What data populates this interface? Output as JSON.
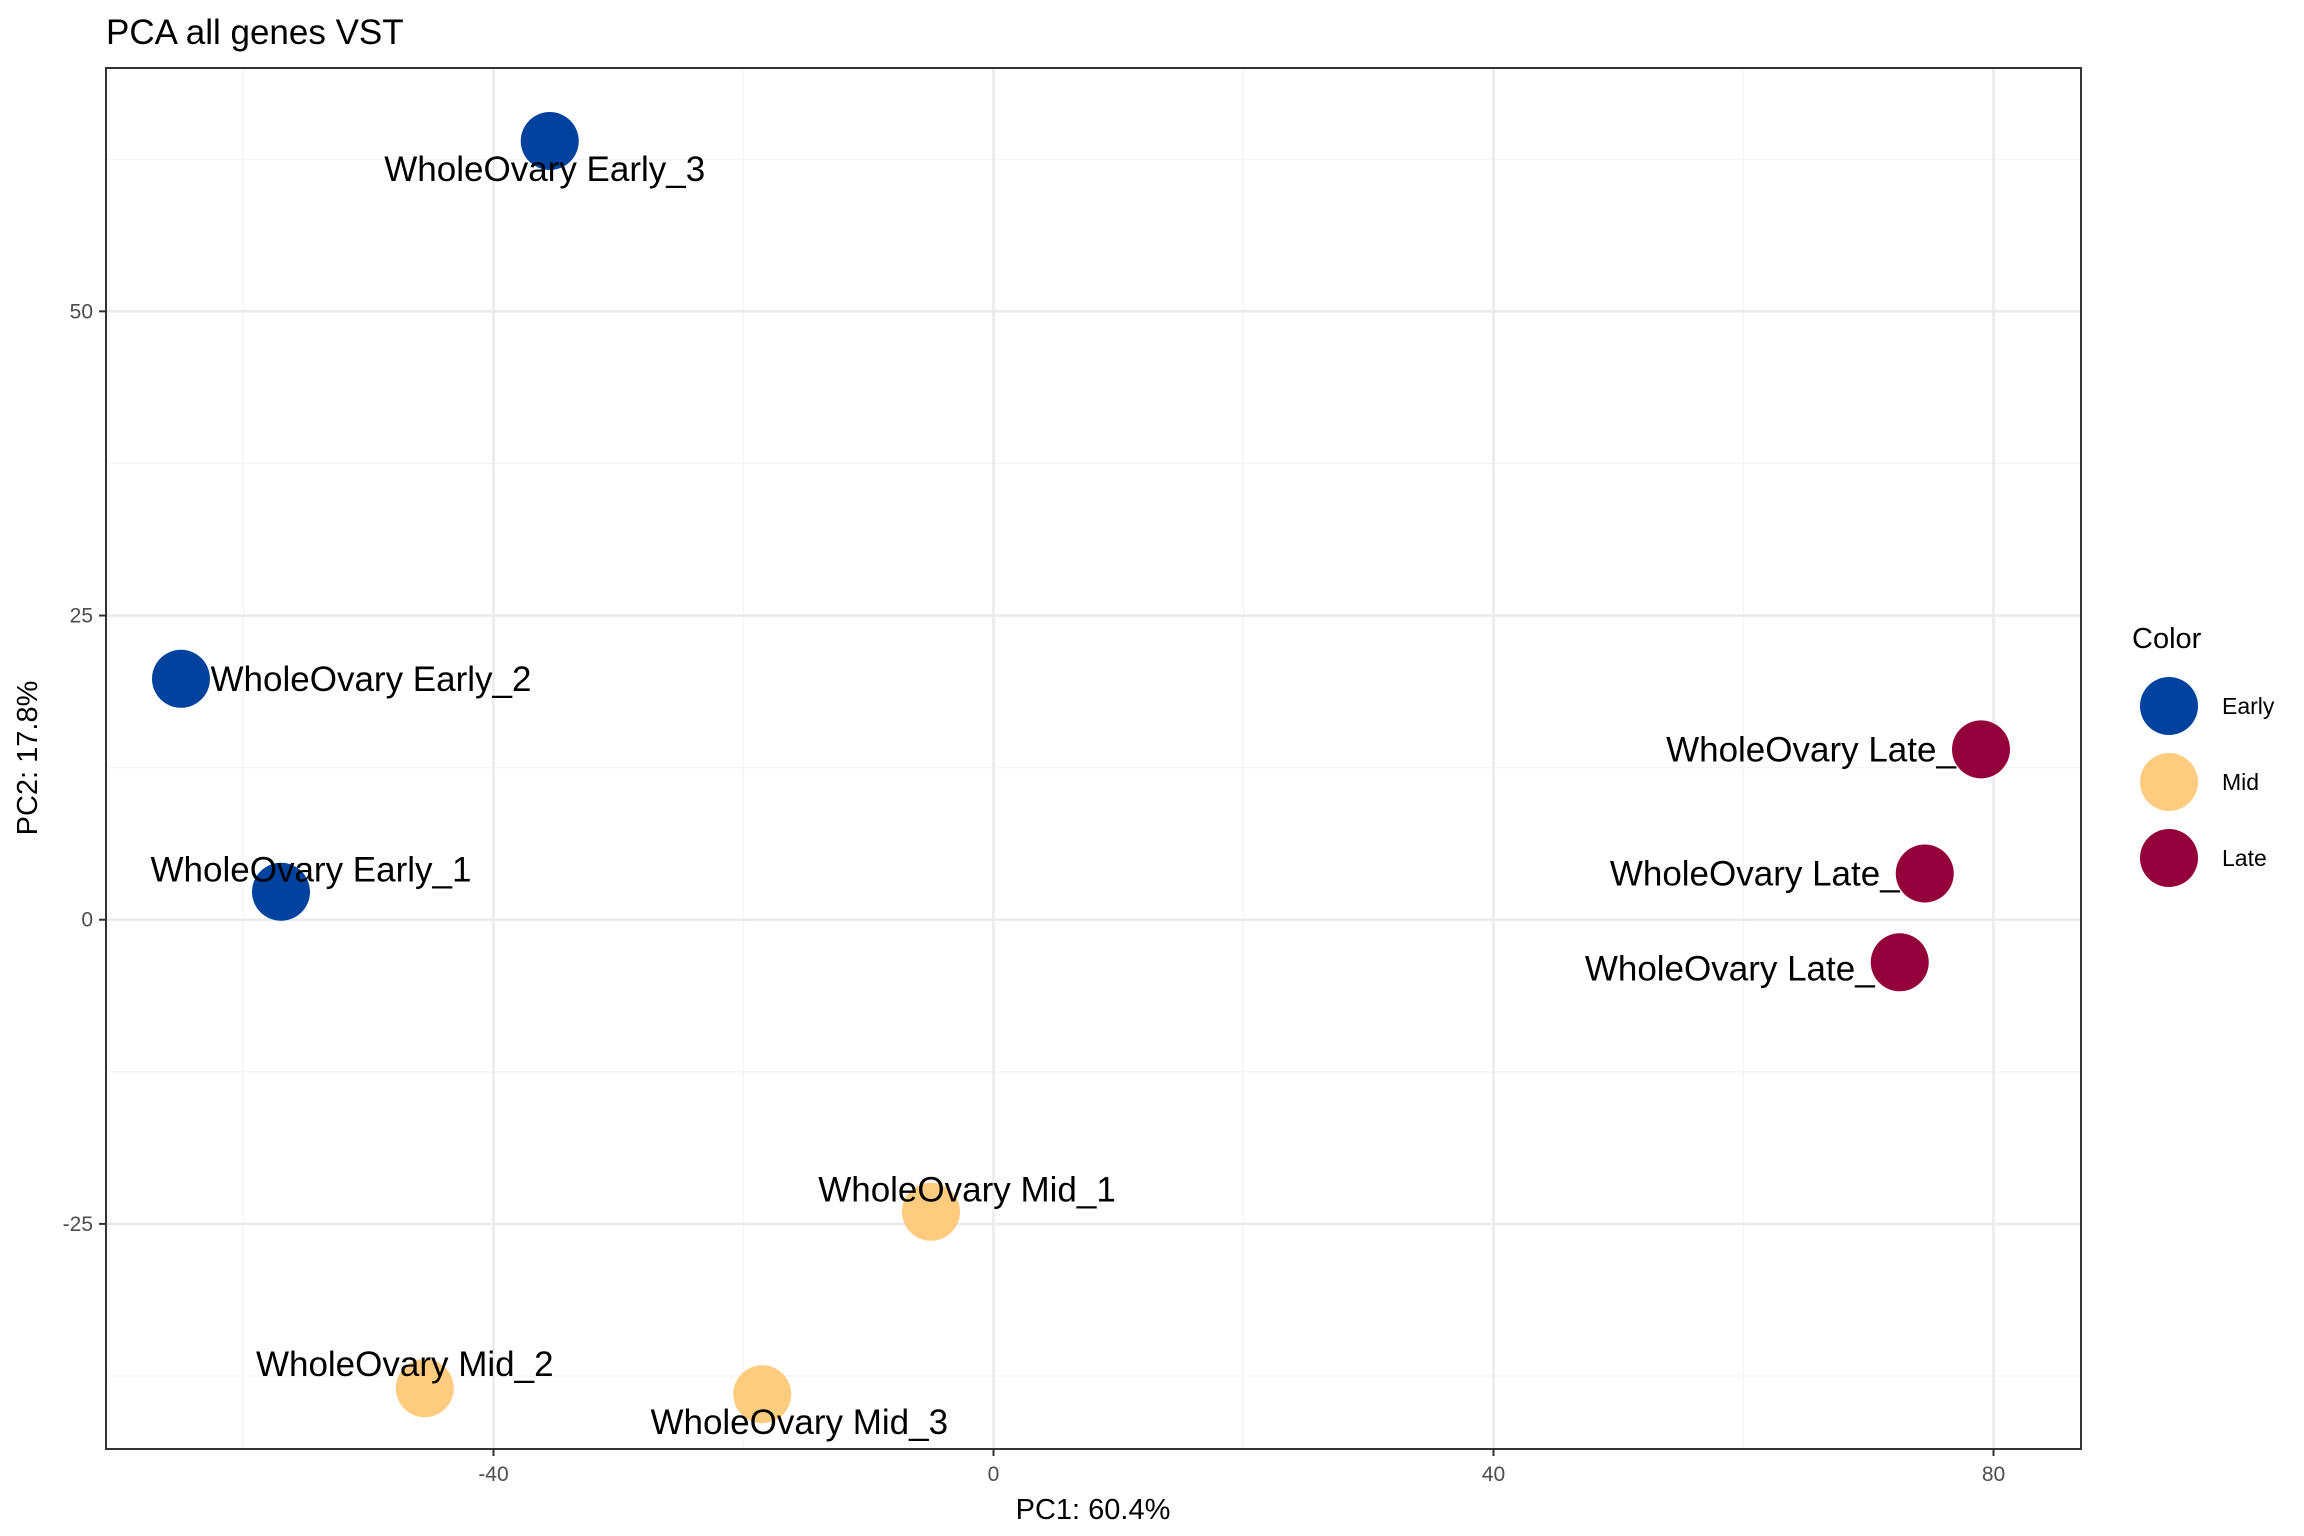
{
  "chart_data": {
    "type": "scatter",
    "title": "PCA all genes VST",
    "xlabel": "PC1: 60.4%",
    "ylabel": "PC2: 17.8%",
    "xlim": [
      -71,
      87
    ],
    "ylim": [
      -43.5,
      70
    ],
    "x_ticks": [
      -40,
      0,
      40,
      80
    ],
    "x_tick_labels": [
      "-40",
      "0",
      "40",
      "80"
    ],
    "y_ticks": [
      -25,
      0,
      25,
      50
    ],
    "y_tick_labels": [
      "-25",
      "0",
      "25",
      "50"
    ],
    "grid": true,
    "legend": {
      "title": "Color",
      "position": "right",
      "entries": [
        {
          "label": "Early",
          "color": "#00429D"
        },
        {
          "label": "Mid",
          "color": "#FFCB7F"
        },
        {
          "label": "Late",
          "color": "#93003A"
        }
      ]
    },
    "points": [
      {
        "label": "WholeOvary Early_3",
        "group": "Early",
        "x": -35.5,
        "y": 64
      },
      {
        "label": "WholeOvary Early_2",
        "group": "Early",
        "x": -65,
        "y": 19.8
      },
      {
        "label": "WholeOvary Early_1",
        "group": "Early",
        "x": -57,
        "y": 2.3
      },
      {
        "label": "WholeOvary Late_",
        "group": "Late",
        "x": 79,
        "y": 14
      },
      {
        "label": "WholeOvary Late_",
        "group": "Late",
        "x": 74.5,
        "y": 3.8
      },
      {
        "label": "WholeOvary Late_",
        "group": "Late",
        "x": 72.5,
        "y": -3.5
      },
      {
        "label": "WholeOvary Mid_1",
        "group": "Mid",
        "x": -5,
        "y": -24
      },
      {
        "label": "WholeOvary Mid_2",
        "group": "Mid",
        "x": -45.5,
        "y": -38.5
      },
      {
        "label": "WholeOvary Mid_3",
        "group": "Mid",
        "x": -18.5,
        "y": -39
      }
    ]
  }
}
